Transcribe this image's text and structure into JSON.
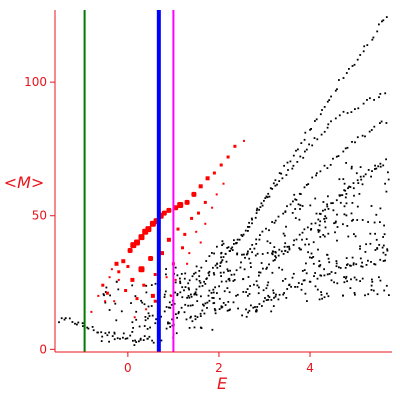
{
  "chart_data": {
    "type": "scatter",
    "title": "",
    "xlabel": "E",
    "ylabel": "<M>",
    "xlim": [
      -1.6,
      5.8
    ],
    "ylim": [
      -1,
      127
    ],
    "grid": false,
    "legend": "none",
    "x_ticks": [
      0,
      2,
      4
    ],
    "y_ticks": [
      0,
      50,
      100
    ],
    "vlines": [
      {
        "x": -0.95,
        "color": "#007a00",
        "style": "thin"
      },
      {
        "x": 0.68,
        "color": "#0000ff",
        "style": "thick"
      },
      {
        "x": 1.0,
        "color": "#ff00ff",
        "style": "thin"
      }
    ],
    "colors": {
      "axis": "#e8141b",
      "black_points": "#000000",
      "red_points": "#ff0000"
    },
    "series": [
      {
        "marker": "black-dot",
        "color": "#000000",
        "bands": [
          {
            "type": "curve",
            "points": [
              [
                -1.55,
                10.5
              ],
              [
                -1.3,
                11
              ],
              [
                -1.0,
                9
              ],
              [
                -0.7,
                7
              ],
              [
                -0.4,
                5.5
              ],
              [
                -0.1,
                4.5
              ],
              [
                0.2,
                4
              ],
              [
                0.5,
                4
              ]
            ],
            "n": 36
          },
          {
            "type": "curve",
            "points": [
              [
                0.1,
                0.5
              ],
              [
                0.5,
                8
              ],
              [
                1.0,
                18
              ],
              [
                1.6,
                30
              ],
              [
                2.0,
                39
              ],
              [
                2.5,
                36
              ],
              [
                3.2,
                36
              ],
              [
                4.0,
                40
              ],
              [
                5.0,
                48
              ],
              [
                5.7,
                47
              ]
            ],
            "n": 60
          },
          {
            "type": "curve",
            "points": [
              [
                0.8,
                8
              ],
              [
                1.5,
                22
              ],
              [
                2.2,
                36
              ],
              [
                2.6,
                44
              ],
              [
                3.2,
                62
              ],
              [
                4.0,
                82
              ],
              [
                4.7,
                101
              ],
              [
                5.3,
                115
              ],
              [
                5.7,
                126
              ]
            ],
            "n": 80
          },
          {
            "type": "curve",
            "points": [
              [
                1.3,
                18
              ],
              [
                1.9,
                30
              ],
              [
                2.5,
                42
              ],
              [
                3.0,
                56
              ],
              [
                3.8,
                72
              ],
              [
                4.5,
                86
              ],
              [
                5.7,
                97
              ]
            ],
            "n": 70
          },
          {
            "type": "curve",
            "points": [
              [
                1.4,
                10
              ],
              [
                1.9,
                22
              ],
              [
                2.4,
                30
              ],
              [
                3.0,
                44
              ],
              [
                3.6,
                55
              ],
              [
                4.3,
                68
              ],
              [
                5.0,
                78
              ],
              [
                5.7,
                86
              ]
            ],
            "n": 70
          },
          {
            "type": "curve",
            "points": [
              [
                1.9,
                14
              ],
              [
                2.6,
                22
              ],
              [
                3.2,
                34
              ],
              [
                4.0,
                46
              ],
              [
                4.8,
                60
              ],
              [
                5.7,
                71
              ]
            ],
            "n": 60
          },
          {
            "type": "curve",
            "points": [
              [
                2.5,
                12
              ],
              [
                3.2,
                20
              ],
              [
                4.0,
                26
              ],
              [
                4.8,
                31
              ],
              [
                5.7,
                33
              ]
            ],
            "n": 50
          },
          {
            "type": "cloud",
            "xrange": [
              -0.6,
              1.1
            ],
            "yrange": [
              2,
              26
            ],
            "n": 60
          },
          {
            "type": "cloud",
            "xrange": [
              0.8,
              2.0
            ],
            "yrange": [
              6,
              32
            ],
            "n": 70
          },
          {
            "type": "cloud",
            "xrange": [
              2.0,
              3.3
            ],
            "yrange": [
              14,
              42
            ],
            "n": 80
          },
          {
            "type": "cloud",
            "xrange": [
              3.3,
              4.6
            ],
            "yrange": [
              18,
              58
            ],
            "n": 100
          },
          {
            "type": "cloud",
            "xrange": [
              4.6,
              5.75
            ],
            "yrange": [
              20,
              70
            ],
            "n": 100
          }
        ]
      },
      {
        "marker": "red-square",
        "color": "#ff0000",
        "points": [
          [
            -0.8,
            14,
            2
          ],
          [
            -0.65,
            20,
            2
          ],
          [
            -0.55,
            24,
            3
          ],
          [
            -0.45,
            21,
            3
          ],
          [
            -0.4,
            27,
            2
          ],
          [
            -0.3,
            18,
            2
          ],
          [
            -0.25,
            32,
            4
          ],
          [
            -0.2,
            29,
            3
          ],
          [
            -0.1,
            33,
            4
          ],
          [
            0.0,
            31,
            3
          ],
          [
            0.05,
            37,
            5
          ],
          [
            0.12,
            39,
            6
          ],
          [
            0.2,
            40,
            6
          ],
          [
            0.3,
            42,
            6
          ],
          [
            0.38,
            44,
            6
          ],
          [
            0.45,
            45,
            6
          ],
          [
            0.55,
            47,
            6
          ],
          [
            0.63,
            48,
            6
          ],
          [
            0.72,
            50,
            6
          ],
          [
            0.8,
            51,
            5
          ],
          [
            0.9,
            52,
            5
          ],
          [
            1.05,
            53,
            5
          ],
          [
            1.15,
            54,
            6
          ],
          [
            1.3,
            55,
            5
          ],
          [
            1.45,
            58,
            5
          ],
          [
            1.6,
            61,
            4
          ],
          [
            1.75,
            64,
            4
          ],
          [
            1.9,
            66,
            3
          ],
          [
            2.05,
            69,
            3
          ],
          [
            2.2,
            72,
            3
          ],
          [
            2.35,
            76,
            3
          ],
          [
            2.55,
            78,
            2
          ],
          [
            0.3,
            30,
            6
          ],
          [
            0.5,
            34,
            5
          ],
          [
            0.1,
            26,
            4
          ],
          [
            -0.05,
            22,
            3
          ],
          [
            0.2,
            19,
            3
          ],
          [
            0.35,
            24,
            3
          ],
          [
            0.6,
            28,
            3
          ],
          [
            0.75,
            36,
            4
          ],
          [
            0.9,
            41,
            4
          ],
          [
            1.1,
            45,
            3
          ],
          [
            1.25,
            43,
            3
          ],
          [
            1.4,
            49,
            3
          ],
          [
            1.55,
            51,
            3
          ],
          [
            1.7,
            55,
            3
          ],
          [
            1.85,
            53,
            2
          ],
          [
            1.2,
            38,
            3
          ],
          [
            1.35,
            36,
            2
          ],
          [
            1.0,
            32,
            3
          ],
          [
            0.85,
            27,
            2
          ],
          [
            0.6,
            18,
            3
          ],
          [
            0.4,
            15,
            2
          ],
          [
            0.7,
            22,
            2
          ],
          [
            1.05,
            26,
            2
          ],
          [
            1.5,
            44,
            2
          ],
          [
            1.7,
            47,
            2
          ],
          [
            1.95,
            58,
            2
          ],
          [
            2.1,
            62,
            2
          ],
          [
            0.55,
            20,
            4
          ],
          [
            0.15,
            12,
            2
          ],
          [
            -0.2,
            26,
            2
          ],
          [
            -0.5,
            18,
            2
          ],
          [
            -0.35,
            30,
            2
          ],
          [
            1.3,
            32,
            2
          ],
          [
            1.6,
            40,
            2
          ],
          [
            0.95,
            20,
            2
          ]
        ]
      }
    ]
  }
}
